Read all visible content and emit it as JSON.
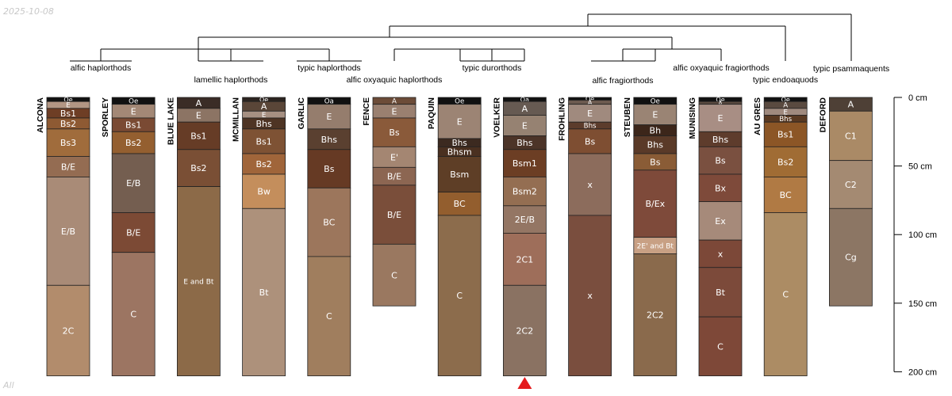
{
  "date_stamp": "2025-10-08",
  "corner_label": "All",
  "depth_axis": {
    "unit": "cm",
    "max": 200,
    "ticks": [
      {
        "value": 0,
        "label": "0 cm"
      },
      {
        "value": 50,
        "label": "50 cm"
      },
      {
        "value": 100,
        "label": "100 cm"
      },
      {
        "value": 150,
        "label": "150 cm"
      },
      {
        "value": 200,
        "label": "200 cm"
      }
    ]
  },
  "marker": {
    "profile": "VOELKER",
    "color": "#e41a1c",
    "shape": "triangle"
  },
  "taxa_labels": [
    "alfic haplorthods",
    "lamellic haplorthods",
    "typic haplorthods",
    "alfic oxyaquic haplorthods",
    "typic durorthods",
    "alfic fragiorthods",
    "alfic oxyaquic fragiorthods",
    "typic endoaquods",
    "typic psammaquents"
  ],
  "profiles": [
    {
      "name": "ALCONA",
      "horizons": [
        {
          "name": "Oe",
          "top": 0,
          "bottom": 3,
          "color": "#111111"
        },
        {
          "name": "E",
          "top": 3,
          "bottom": 8,
          "color": "#b29684"
        },
        {
          "name": "Bs1",
          "top": 8,
          "bottom": 15,
          "color": "#6e3e25"
        },
        {
          "name": "Bs2",
          "top": 15,
          "bottom": 23,
          "color": "#8e5a33"
        },
        {
          "name": "Bs3",
          "top": 23,
          "bottom": 43,
          "color": "#a06c3c"
        },
        {
          "name": "B/E",
          "top": 43,
          "bottom": 58,
          "color": "#946c52"
        },
        {
          "name": "E/B",
          "top": 58,
          "bottom": 137,
          "color": "#a98b77"
        },
        {
          "name": "2C",
          "top": 137,
          "bottom": 203,
          "color": "#b28c6c"
        }
      ]
    },
    {
      "name": "SPORLEY",
      "horizons": [
        {
          "name": "Oe",
          "top": 0,
          "bottom": 5,
          "color": "#111111"
        },
        {
          "name": "E",
          "top": 5,
          "bottom": 15,
          "color": "#a38876"
        },
        {
          "name": "Bs1",
          "top": 15,
          "bottom": 25,
          "color": "#7a4a33"
        },
        {
          "name": "Bs2",
          "top": 25,
          "bottom": 41,
          "color": "#945f30"
        },
        {
          "name": "E/B",
          "top": 41,
          "bottom": 84,
          "color": "#745e50"
        },
        {
          "name": "B/E",
          "top": 84,
          "bottom": 113,
          "color": "#7c4a35"
        },
        {
          "name": "C",
          "top": 113,
          "bottom": 203,
          "color": "#9c7562"
        }
      ]
    },
    {
      "name": "BLUE LAKE",
      "horizons": [
        {
          "name": "A",
          "top": 0,
          "bottom": 8,
          "color": "#3a2c26"
        },
        {
          "name": "E",
          "top": 8,
          "bottom": 18,
          "color": "#8c7464"
        },
        {
          "name": "Bs1",
          "top": 18,
          "bottom": 38,
          "color": "#663c26"
        },
        {
          "name": "Bs2",
          "top": 38,
          "bottom": 65,
          "color": "#7a4f35"
        },
        {
          "name": "E and Bt",
          "top": 65,
          "bottom": 203,
          "color": "#8c6a48"
        }
      ]
    },
    {
      "name": "MCMILLAN",
      "horizons": [
        {
          "name": "Oe",
          "top": 0,
          "bottom": 3,
          "color": "#2c2420"
        },
        {
          "name": "A",
          "top": 3,
          "bottom": 10,
          "color": "#5a4638"
        },
        {
          "name": "E",
          "top": 10,
          "bottom": 15,
          "color": "#a69082"
        },
        {
          "name": "Bhs",
          "top": 15,
          "bottom": 23,
          "color": "#4e3424"
        },
        {
          "name": "Bs1",
          "top": 23,
          "bottom": 41,
          "color": "#7e5234"
        },
        {
          "name": "Bs2",
          "top": 41,
          "bottom": 56,
          "color": "#a0653a"
        },
        {
          "name": "Bw",
          "top": 56,
          "bottom": 81,
          "color": "#c48e5c"
        },
        {
          "name": "Bt",
          "top": 81,
          "bottom": 203,
          "color": "#ad917b"
        }
      ]
    },
    {
      "name": "GARLIC",
      "horizons": [
        {
          "name": "Oa",
          "top": 0,
          "bottom": 5,
          "color": "#111111"
        },
        {
          "name": "E",
          "top": 5,
          "bottom": 23,
          "color": "#957d6d"
        },
        {
          "name": "Bhs",
          "top": 23,
          "bottom": 38,
          "color": "#5a4030"
        },
        {
          "name": "Bs",
          "top": 38,
          "bottom": 66,
          "color": "#663a24"
        },
        {
          "name": "BC",
          "top": 66,
          "bottom": 116,
          "color": "#9c765c"
        },
        {
          "name": "C",
          "top": 116,
          "bottom": 203,
          "color": "#a07e5e"
        }
      ]
    },
    {
      "name": "FENCE",
      "horizons": [
        {
          "name": "A",
          "top": 0,
          "bottom": 5,
          "color": "#6c4c38"
        },
        {
          "name": "E",
          "top": 5,
          "bottom": 15,
          "color": "#9a8070"
        },
        {
          "name": "Bs",
          "top": 15,
          "bottom": 36,
          "color": "#8a5a3a"
        },
        {
          "name": "E'",
          "top": 36,
          "bottom": 51,
          "color": "#a48672"
        },
        {
          "name": "B/E",
          "top": 51,
          "bottom": 64,
          "color": "#8c6652"
        },
        {
          "name": "B/E",
          "top": 64,
          "bottom": 107,
          "color": "#7a4e3a"
        },
        {
          "name": "C",
          "top": 107,
          "bottom": 152,
          "color": "#9a7860"
        }
      ]
    },
    {
      "name": "PAQUIN",
      "horizons": [
        {
          "name": "Oe",
          "top": 0,
          "bottom": 5,
          "color": "#111111"
        },
        {
          "name": "E",
          "top": 5,
          "bottom": 30,
          "color": "#9c8474"
        },
        {
          "name": "Bhs",
          "top": 30,
          "bottom": 36,
          "color": "#3c2a20"
        },
        {
          "name": "Bhsm",
          "top": 36,
          "bottom": 43,
          "color": "#4a3020"
        },
        {
          "name": "Bsm",
          "top": 43,
          "bottom": 69,
          "color": "#5e3e26"
        },
        {
          "name": "BC",
          "top": 69,
          "bottom": 86,
          "color": "#935e2e"
        },
        {
          "name": "C",
          "top": 86,
          "bottom": 203,
          "color": "#8c6c4c"
        }
      ]
    },
    {
      "name": "VOELKER",
      "horizons": [
        {
          "name": "Oa",
          "top": 0,
          "bottom": 3,
          "color": "#111111"
        },
        {
          "name": "A",
          "top": 3,
          "bottom": 13,
          "color": "#665a52"
        },
        {
          "name": "E",
          "top": 13,
          "bottom": 28,
          "color": "#968272"
        },
        {
          "name": "Bhs",
          "top": 28,
          "bottom": 38,
          "color": "#4c3428"
        },
        {
          "name": "Bsm1",
          "top": 38,
          "bottom": 58,
          "color": "#6c3e24"
        },
        {
          "name": "Bsm2",
          "top": 58,
          "bottom": 79,
          "color": "#946e52"
        },
        {
          "name": "2E/B",
          "top": 79,
          "bottom": 99,
          "color": "#947664"
        },
        {
          "name": "2C1",
          "top": 99,
          "bottom": 137,
          "color": "#9e6e5a"
        },
        {
          "name": "2C2",
          "top": 137,
          "bottom": 203,
          "color": "#8a7262"
        }
      ]
    },
    {
      "name": "FROHLING",
      "horizons": [
        {
          "name": "Oe",
          "top": 0,
          "bottom": 2,
          "color": "#111111"
        },
        {
          "name": "A",
          "top": 2,
          "bottom": 5,
          "color": "#6c5a50"
        },
        {
          "name": "E",
          "top": 5,
          "bottom": 18,
          "color": "#a08a7e"
        },
        {
          "name": "Bhs",
          "top": 18,
          "bottom": 23,
          "color": "#5c3c2c"
        },
        {
          "name": "Bs",
          "top": 23,
          "bottom": 41,
          "color": "#7e4e32"
        },
        {
          "name": "x",
          "top": 41,
          "bottom": 86,
          "color": "#8c6c5c"
        },
        {
          "name": "x",
          "top": 86,
          "bottom": 203,
          "color": "#7a4e3e"
        }
      ]
    },
    {
      "name": "STEUBEN",
      "horizons": [
        {
          "name": "Oe",
          "top": 0,
          "bottom": 5,
          "color": "#111111"
        },
        {
          "name": "E",
          "top": 5,
          "bottom": 20,
          "color": "#9a8474"
        },
        {
          "name": "Bh",
          "top": 20,
          "bottom": 28,
          "color": "#3c261a"
        },
        {
          "name": "Bhs",
          "top": 28,
          "bottom": 41,
          "color": "#5a3a28"
        },
        {
          "name": "Bs",
          "top": 41,
          "bottom": 53,
          "color": "#8a5c36"
        },
        {
          "name": "B/Ex",
          "top": 53,
          "bottom": 102,
          "color": "#7e4a3a"
        },
        {
          "name": "2E' and Bt",
          "top": 102,
          "bottom": 114,
          "color": "#c8a084"
        },
        {
          "name": "2C2",
          "top": 114,
          "bottom": 203,
          "color": "#8a6a4c"
        }
      ]
    },
    {
      "name": "MUNISING",
      "horizons": [
        {
          "name": "Oe",
          "top": 0,
          "bottom": 3,
          "color": "#111111"
        },
        {
          "name": "A",
          "top": 3,
          "bottom": 5,
          "color": "#5a4a40"
        },
        {
          "name": "E",
          "top": 5,
          "bottom": 25,
          "color": "#a88e84"
        },
        {
          "name": "Bhs",
          "top": 25,
          "bottom": 36,
          "color": "#5e3c2c"
        },
        {
          "name": "Bs",
          "top": 36,
          "bottom": 56,
          "color": "#7a5040"
        },
        {
          "name": "Bx",
          "top": 56,
          "bottom": 76,
          "color": "#7e4a3a"
        },
        {
          "name": "Ex",
          "top": 76,
          "bottom": 104,
          "color": "#a68a7a"
        },
        {
          "name": "x",
          "top": 104,
          "bottom": 124,
          "color": "#7c4838"
        },
        {
          "name": "Bt",
          "top": 124,
          "bottom": 160,
          "color": "#7c4a3a"
        },
        {
          "name": "C",
          "top": 160,
          "bottom": 203,
          "color": "#7e4838"
        }
      ]
    },
    {
      "name": "AU GRES",
      "horizons": [
        {
          "name": "Oe",
          "top": 0,
          "bottom": 3,
          "color": "#111111"
        },
        {
          "name": "A",
          "top": 3,
          "bottom": 8,
          "color": "#5a4a40"
        },
        {
          "name": "E",
          "top": 8,
          "bottom": 13,
          "color": "#a08a7e"
        },
        {
          "name": "Bhs",
          "top": 13,
          "bottom": 18,
          "color": "#5a3a22"
        },
        {
          "name": "Bs1",
          "top": 18,
          "bottom": 36,
          "color": "#8c5626"
        },
        {
          "name": "Bs2",
          "top": 36,
          "bottom": 58,
          "color": "#a06c34"
        },
        {
          "name": "BC",
          "top": 58,
          "bottom": 84,
          "color": "#b07a44"
        },
        {
          "name": "C",
          "top": 84,
          "bottom": 203,
          "color": "#ac8c64"
        }
      ]
    },
    {
      "name": "DEFORD",
      "horizons": [
        {
          "name": "A",
          "top": 0,
          "bottom": 10,
          "color": "#4e4036"
        },
        {
          "name": "C1",
          "top": 10,
          "bottom": 46,
          "color": "#aa8a66"
        },
        {
          "name": "C2",
          "top": 46,
          "bottom": 81,
          "color": "#a48a72"
        },
        {
          "name": "Cg",
          "top": 81,
          "bottom": 152,
          "color": "#8c7664"
        }
      ]
    }
  ]
}
